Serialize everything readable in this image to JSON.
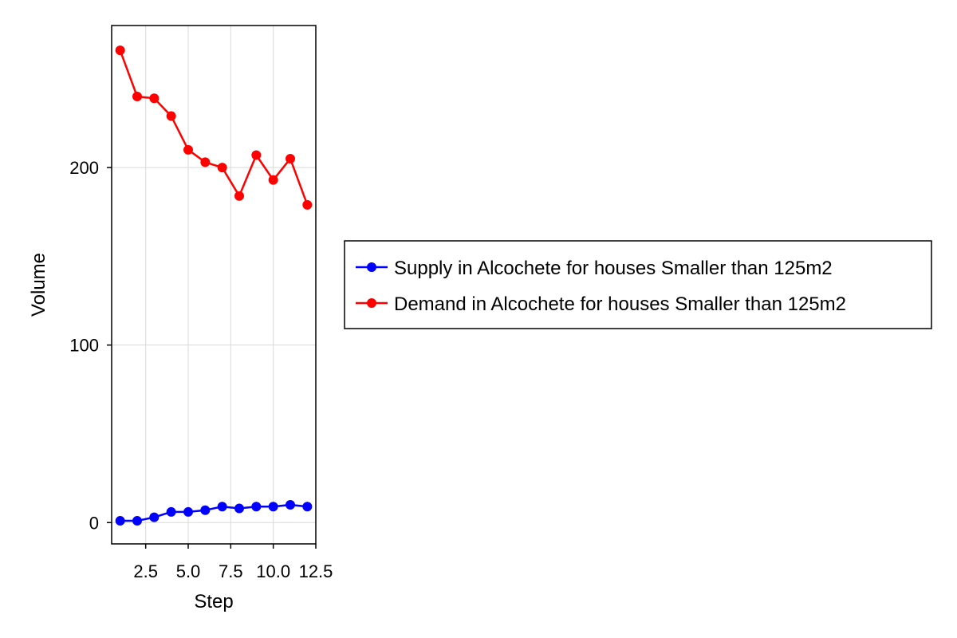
{
  "chart_data": {
    "type": "line",
    "title": "",
    "xlabel": "Step",
    "ylabel": "Volume",
    "x": [
      1,
      2,
      3,
      4,
      5,
      6,
      7,
      8,
      9,
      10,
      11,
      12
    ],
    "xlim": [
      0.5,
      12.5
    ],
    "ylim": [
      -12,
      280
    ],
    "x_ticks": [
      2.5,
      5.0,
      7.5,
      10.0,
      12.5
    ],
    "x_tick_labels": [
      "2.5",
      "5.0",
      "7.5",
      "10.0",
      "12.5"
    ],
    "y_ticks": [
      0,
      100,
      200
    ],
    "y_tick_labels": [
      "0",
      "100",
      "200"
    ],
    "grid": true,
    "legend_position": "right",
    "series": [
      {
        "name": "Supply in Alcochete for houses Smaller than 125m2",
        "color": "#0000ff",
        "values": [
          1,
          1,
          3,
          6,
          6,
          7,
          9,
          8,
          9,
          9,
          10,
          9
        ]
      },
      {
        "name": "Demand in Alcochete for houses Smaller than 125m2",
        "color": "#ff0000",
        "values": [
          266,
          240,
          239,
          229,
          210,
          203,
          200,
          184,
          207,
          193,
          205,
          179
        ]
      }
    ]
  }
}
